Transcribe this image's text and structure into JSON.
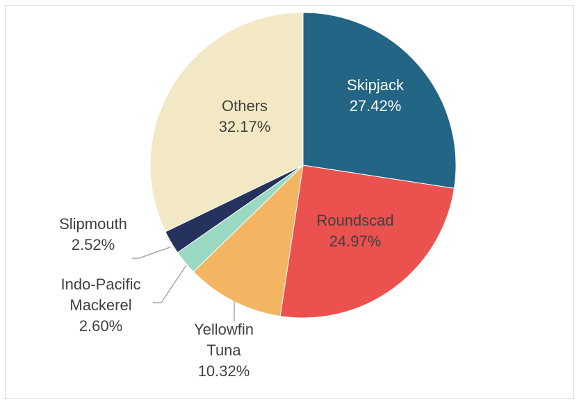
{
  "chart_data": {
    "type": "pie",
    "title": "",
    "slices": [
      {
        "name": "Skipjack",
        "value": 27.42,
        "value_label": "27.42%",
        "color": "#226584",
        "label_color": "#ffffff",
        "label_lines": [
          "Skipjack"
        ]
      },
      {
        "name": "Roundscad",
        "value": 24.97,
        "value_label": "24.97%",
        "color": "#eb514e",
        "label_color": "#404040",
        "label_lines": [
          "Roundscad"
        ]
      },
      {
        "name": "Yellowfin Tuna",
        "value": 10.32,
        "value_label": "10.32%",
        "color": "#f4b563",
        "label_color": "#404040",
        "label_lines": [
          "Yellowfin",
          "Tuna"
        ]
      },
      {
        "name": "Indo-Pacific Mackerel",
        "value": 2.6,
        "value_label": "2.60%",
        "color": "#99d8c1",
        "label_color": "#404040",
        "label_lines": [
          "Indo-Pacific",
          "Mackerel"
        ]
      },
      {
        "name": "Slipmouth",
        "value": 2.52,
        "value_label": "2.52%",
        "color": "#26325e",
        "label_color": "#404040",
        "label_lines": [
          "Slipmouth"
        ]
      },
      {
        "name": "Others",
        "value": 32.17,
        "value_label": "32.17%",
        "color": "#f3e8c4",
        "label_color": "#404040",
        "label_lines": [
          "Others"
        ]
      }
    ],
    "start_angle_deg": 0,
    "direction": "clockwise",
    "leader_line_color": "#a6a6a6"
  }
}
